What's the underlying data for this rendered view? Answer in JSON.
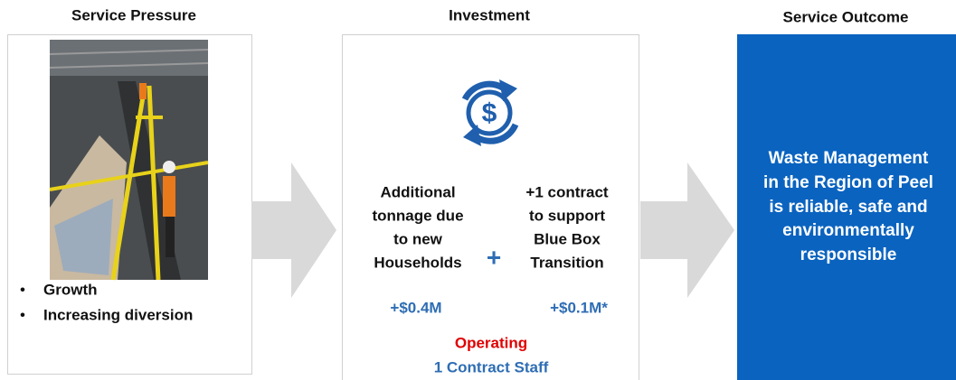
{
  "columns": [
    {
      "title": "Service Pressure",
      "bullets": [
        "Growth",
        "Increasing diversion"
      ]
    },
    {
      "title": "Investment",
      "left": {
        "lines": [
          "Additional",
          "tonnage due",
          "to new",
          "Households"
        ],
        "amount": "+$0.4M"
      },
      "plus": "+",
      "right": {
        "lines": [
          "+1 contract",
          "to support",
          "Blue Box",
          "Transition"
        ],
        "amount": "+$0.1M*"
      },
      "footer": [
        "Operating",
        "1 Contract Staff"
      ]
    },
    {
      "title": "Service Outcome",
      "lines": [
        "Waste Management",
        "in the Region of Peel",
        "is reliable, safe and",
        "environmentally",
        "responsible"
      ]
    }
  ]
}
